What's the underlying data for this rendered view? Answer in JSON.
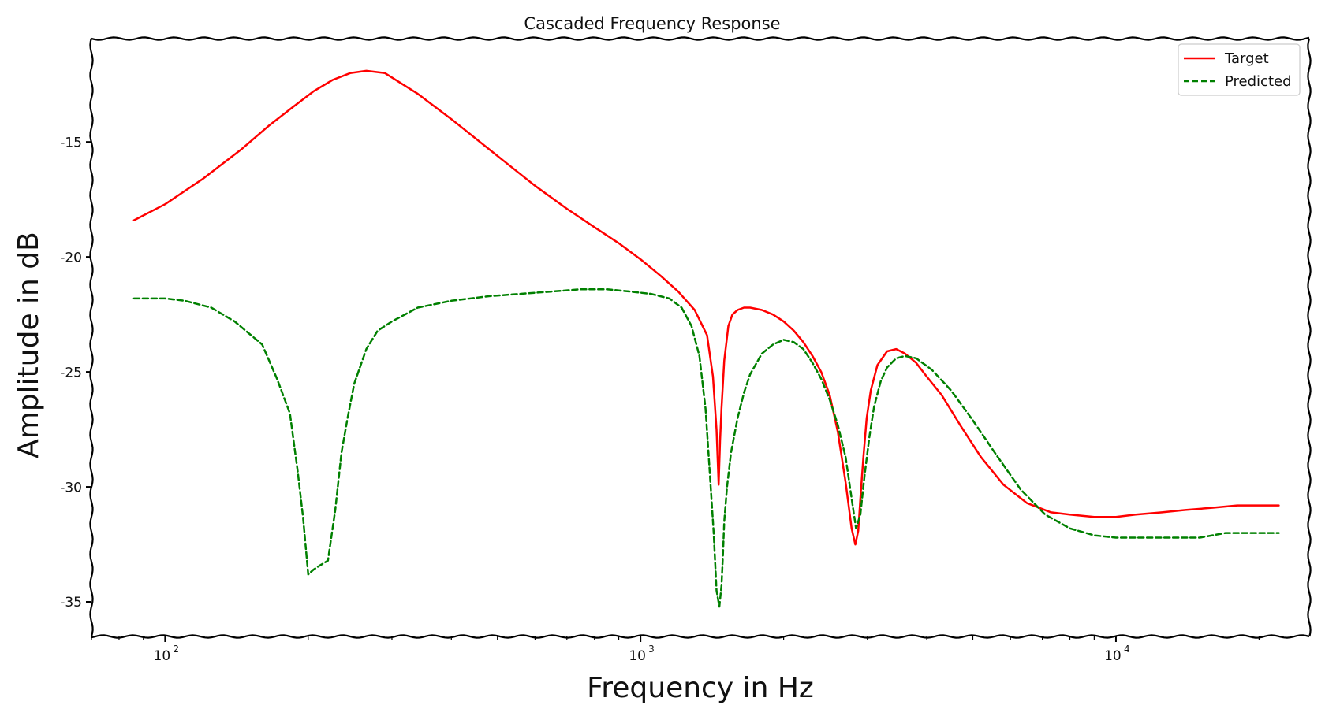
{
  "chart_data": {
    "type": "line",
    "title": "Cascaded Frequency Response",
    "xlabel": "Frequency in Hz",
    "ylabel": "Amplitude in dB",
    "xscale": "log",
    "xlim": [
      70,
      25500
    ],
    "ylim": [
      -36.5,
      -10.5
    ],
    "yticks": [
      -15,
      -20,
      -25,
      -30,
      -35
    ],
    "ytick_labels": [
      "-15",
      "-20",
      "-25",
      "-30",
      "-35"
    ],
    "xticks": [
      100,
      1000,
      10000
    ],
    "xtick_labels": [
      {
        "base": "10",
        "exp": "2"
      },
      {
        "base": "10",
        "exp": "3"
      },
      {
        "base": "10",
        "exp": "4"
      }
    ],
    "legend": {
      "position": "top-right"
    },
    "series": [
      {
        "name": "Target",
        "color": "#ff0000",
        "style": "solid",
        "x": [
          86,
          100,
          120,
          145,
          165,
          185,
          205,
          225,
          245,
          265,
          290,
          340,
          400,
          500,
          600,
          700,
          800,
          900,
          1000,
          1100,
          1200,
          1300,
          1380,
          1420,
          1445,
          1460,
          1470,
          1480,
          1500,
          1530,
          1560,
          1600,
          1650,
          1700,
          1800,
          1900,
          2000,
          2100,
          2200,
          2300,
          2400,
          2500,
          2600,
          2700,
          2780,
          2830,
          2870,
          2900,
          2940,
          2990,
          3050,
          3150,
          3300,
          3450,
          3600,
          3800,
          4000,
          4300,
          4700,
          5200,
          5800,
          6500,
          7300,
          8000,
          9000,
          10000,
          11000,
          12500,
          14000,
          16000,
          18000,
          20000,
          22000
        ],
        "values": [
          -18.4,
          -17.7,
          -16.6,
          -15.3,
          -14.3,
          -13.5,
          -12.8,
          -12.3,
          -12.0,
          -11.9,
          -12.0,
          -12.9,
          -14.0,
          -15.6,
          -16.9,
          -17.9,
          -18.7,
          -19.4,
          -20.1,
          -20.8,
          -21.5,
          -22.3,
          -23.4,
          -25.2,
          -27.5,
          -29.9,
          -28.0,
          -26.6,
          -24.5,
          -23.0,
          -22.5,
          -22.3,
          -22.2,
          -22.2,
          -22.3,
          -22.5,
          -22.8,
          -23.2,
          -23.7,
          -24.3,
          -25.0,
          -26.0,
          -27.6,
          -29.8,
          -31.8,
          -32.5,
          -31.9,
          -30.5,
          -28.8,
          -27.0,
          -25.8,
          -24.7,
          -24.1,
          -24.0,
          -24.2,
          -24.6,
          -25.2,
          -26.0,
          -27.3,
          -28.7,
          -29.9,
          -30.7,
          -31.1,
          -31.2,
          -31.3,
          -31.3,
          -31.2,
          -31.1,
          -31.0,
          -30.9,
          -30.8,
          -30.8,
          -30.8
        ]
      },
      {
        "name": "Predicted",
        "color": "#008000",
        "style": "dashed",
        "x": [
          86,
          100,
          110,
          125,
          140,
          160,
          172,
          183,
          190,
          195,
          200,
          205,
          212,
          220,
          228,
          235,
          242,
          250,
          265,
          280,
          300,
          340,
          400,
          480,
          560,
          650,
          750,
          850,
          950,
          1050,
          1150,
          1220,
          1280,
          1330,
          1370,
          1400,
          1425,
          1445,
          1465,
          1480,
          1490,
          1500,
          1520,
          1550,
          1600,
          1650,
          1700,
          1800,
          1900,
          2000,
          2100,
          2200,
          2300,
          2400,
          2500,
          2600,
          2700,
          2780,
          2840,
          2900,
          2960,
          3030,
          3100,
          3200,
          3300,
          3450,
          3600,
          3800,
          4100,
          4500,
          5000,
          5600,
          6300,
          7100,
          8000,
          9000,
          10000,
          11500,
          13000,
          15000,
          17000,
          19000,
          22000
        ],
        "values": [
          -21.8,
          -21.8,
          -21.9,
          -22.2,
          -22.8,
          -23.8,
          -25.3,
          -26.8,
          -29.3,
          -31.3,
          -33.8,
          -33.6,
          -33.4,
          -33.2,
          -31.0,
          -28.5,
          -27.0,
          -25.5,
          -24.0,
          -23.2,
          -22.8,
          -22.2,
          -21.9,
          -21.7,
          -21.6,
          -21.5,
          -21.4,
          -21.4,
          -21.5,
          -21.6,
          -21.8,
          -22.2,
          -23.0,
          -24.3,
          -26.6,
          -29.5,
          -32.0,
          -34.5,
          -35.2,
          -34.3,
          -33.0,
          -31.5,
          -30.0,
          -28.5,
          -27.0,
          -25.9,
          -25.1,
          -24.2,
          -23.8,
          -23.6,
          -23.7,
          -24.0,
          -24.6,
          -25.3,
          -26.2,
          -27.3,
          -28.7,
          -30.5,
          -31.8,
          -31.2,
          -29.5,
          -27.8,
          -26.5,
          -25.4,
          -24.8,
          -24.4,
          -24.3,
          -24.4,
          -24.9,
          -25.8,
          -27.1,
          -28.6,
          -30.1,
          -31.2,
          -31.8,
          -32.1,
          -32.2,
          -32.2,
          -32.2,
          -32.2,
          -32.0,
          -32.0,
          -32.0
        ]
      }
    ]
  }
}
